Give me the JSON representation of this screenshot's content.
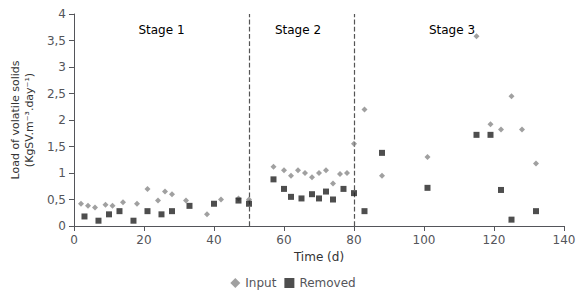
{
  "chart_data": {
    "type": "scatter",
    "x_label": "Time (d)",
    "y_label": "Load of volatile solids\n(KgSV.m⁻³.day⁻¹)",
    "series": [
      {
        "name": "Input",
        "color": "#888888",
        "marker": "diamond",
        "x": [
          2,
          4,
          6,
          9,
          11,
          14,
          18,
          21,
          24,
          26,
          28,
          32,
          38,
          42,
          47,
          50,
          57,
          60,
          62,
          64,
          66,
          68,
          70,
          72,
          74,
          76,
          78,
          80,
          83,
          88,
          101,
          115,
          119,
          122,
          125,
          128,
          132
        ],
        "values": [
          0.42,
          0.38,
          0.35,
          0.4,
          0.38,
          0.45,
          0.42,
          0.7,
          0.48,
          0.65,
          0.6,
          0.48,
          0.22,
          0.5,
          0.52,
          0.5,
          1.12,
          1.05,
          0.95,
          1.05,
          1.0,
          0.92,
          1.0,
          1.05,
          0.8,
          0.98,
          1.0,
          1.55,
          2.2,
          0.95,
          1.3,
          3.58,
          1.92,
          1.82,
          2.45,
          1.82,
          1.18
        ]
      },
      {
        "name": "Removed",
        "color": "#222222",
        "marker": "square",
        "x": [
          3,
          7,
          10,
          13,
          17,
          21,
          25,
          28,
          33,
          40,
          47,
          50,
          57,
          60,
          62,
          65,
          68,
          70,
          72,
          74,
          77,
          80,
          83,
          88,
          101,
          115,
          119,
          122,
          125,
          132
        ],
        "values": [
          0.18,
          0.1,
          0.22,
          0.28,
          0.1,
          0.28,
          0.22,
          0.28,
          0.38,
          0.42,
          0.48,
          0.42,
          0.88,
          0.7,
          0.55,
          0.52,
          0.6,
          0.52,
          0.65,
          0.5,
          0.7,
          0.62,
          0.28,
          1.38,
          0.72,
          1.72,
          1.72,
          0.68,
          0.12,
          0.28
        ]
      }
    ],
    "vlines": [
      {
        "x": 50,
        "color": "#555555",
        "line_style": "dashed"
      },
      {
        "x": 80,
        "color": "#555555",
        "line_style": "dashed"
      }
    ],
    "annotations": [
      {
        "text": "Stage 1",
        "x": 25,
        "y": 3.82
      },
      {
        "text": "Stage 2",
        "x": 64,
        "y": 3.82
      },
      {
        "text": "Stage 3",
        "x": 108,
        "y": 3.82
      }
    ],
    "xlim": [
      0,
      140
    ],
    "xticks": [
      0,
      20,
      40,
      60,
      80,
      100,
      120,
      140
    ],
    "ylim": [
      0,
      4
    ],
    "yticks": [
      0,
      {
        "value": 0.5,
        "label": "0,5"
      },
      1,
      {
        "value": 1.5,
        "label": "1,5"
      },
      2,
      {
        "value": 2.5,
        "label": "2,5"
      },
      3,
      {
        "value": 3.5,
        "label": "3,5"
      },
      4
    ],
    "grid": false,
    "legend": "bottom"
  }
}
